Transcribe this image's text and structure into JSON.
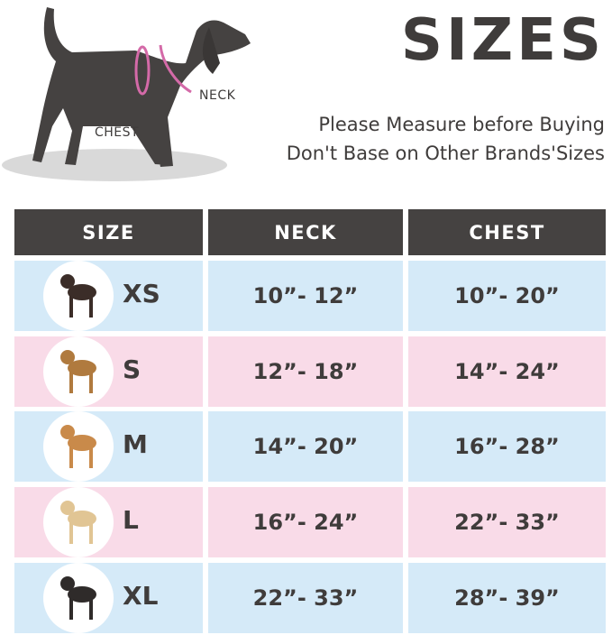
{
  "hero": {
    "neck_label": "NECK",
    "chest_label": "CHEST"
  },
  "title": "SIZES",
  "subtitle_1": "Please Measure before Buying",
  "subtitle_2": "Don't Base on Other Brands'Sizes",
  "colors": {
    "header": "#454241",
    "row_blue": "#d5eaf8",
    "row_pink": "#f9dbe8",
    "harness": "#d46aa8"
  },
  "table": {
    "headers": [
      "SIZE",
      "NECK",
      "CHEST"
    ],
    "rows": [
      {
        "size": "XS",
        "neck": "10”- 12”",
        "chest": "10”- 20”",
        "icon": "chihuahua-icon"
      },
      {
        "size": "S",
        "neck": "12”- 18”",
        "chest": "14”- 24”",
        "icon": "beagle-icon"
      },
      {
        "size": "M",
        "neck": "14”- 20”",
        "chest": "16”- 28”",
        "icon": "shiba-icon"
      },
      {
        "size": "L",
        "neck": "16”- 24”",
        "chest": "22”- 33”",
        "icon": "labrador-icon"
      },
      {
        "size": "XL",
        "neck": "22”- 33”",
        "chest": "28”- 39”",
        "icon": "great-dane-icon"
      }
    ]
  }
}
